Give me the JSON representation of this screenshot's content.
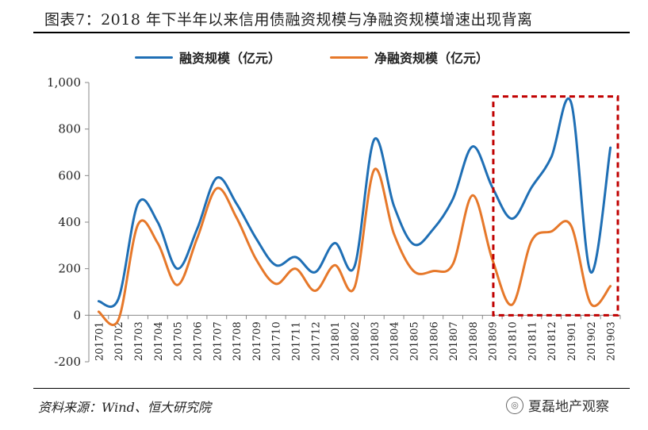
{
  "figure": {
    "title": "图表7：2018 年下半年以来信用债融资规模与净融资规模增速出现背离",
    "source": "资料来源：Wind、恒大研究院",
    "watermark": "夏磊地产观察",
    "watermark_icon": "wechat-icon"
  },
  "chart_data": {
    "type": "line",
    "title": "图表7：2018 年下半年以来信用债融资规模与净融资规模增速出现背离",
    "xlabel": "",
    "ylabel": "",
    "ylim": [
      -200,
      1000
    ],
    "yticks": [
      -200,
      0,
      200,
      400,
      600,
      800,
      1000
    ],
    "ytick_labels": [
      "-200",
      "0",
      "200",
      "400",
      "600",
      "800",
      "1,000"
    ],
    "categories": [
      "201701",
      "201702",
      "201703",
      "201704",
      "201705",
      "201706",
      "201707",
      "201708",
      "201709",
      "201710",
      "201711",
      "201712",
      "201801",
      "201802",
      "201803",
      "201804",
      "201805",
      "201806",
      "201807",
      "201808",
      "201809",
      "201810",
      "201811",
      "201812",
      "201901",
      "201902",
      "201903"
    ],
    "series": [
      {
        "name": "融资规模（亿元）",
        "color": "#1f6fb5",
        "values": [
          60,
          70,
          480,
          400,
          200,
          370,
          590,
          480,
          330,
          215,
          250,
          185,
          310,
          210,
          755,
          470,
          305,
          370,
          500,
          725,
          550,
          415,
          550,
          680,
          915,
          185,
          720
        ]
      },
      {
        "name": "净融资规模（亿元）",
        "color": "#e6782a",
        "values": [
          15,
          -20,
          390,
          310,
          130,
          330,
          545,
          420,
          240,
          135,
          200,
          105,
          215,
          120,
          625,
          350,
          190,
          190,
          220,
          515,
          240,
          45,
          320,
          360,
          385,
          50,
          125
        ]
      }
    ],
    "annotations": [
      {
        "type": "dashed-box",
        "color": "#c00000",
        "from_category": "201809",
        "to_category": "201903",
        "y_range": [
          0,
          940
        ]
      }
    ],
    "legend": "top"
  }
}
